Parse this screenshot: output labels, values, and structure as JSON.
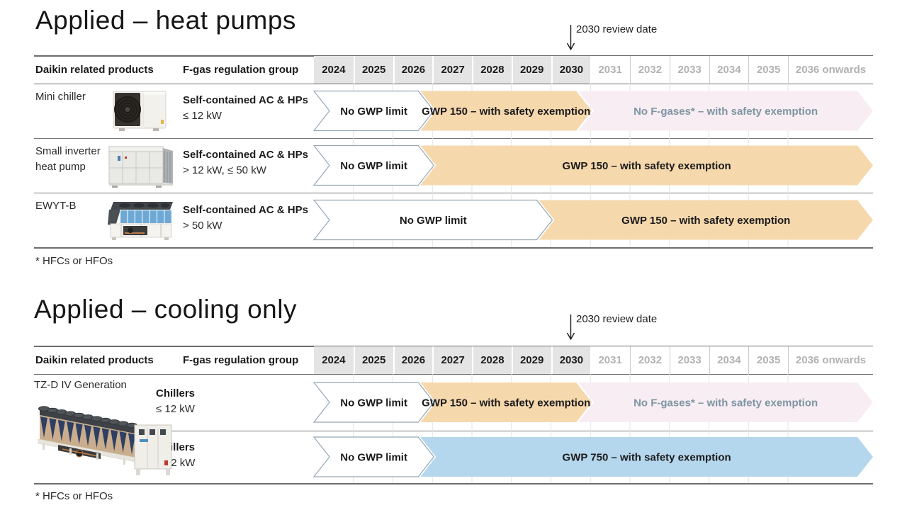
{
  "colors": {
    "orange": "#f6d8ad",
    "pink": "#f8edf3",
    "pink_text": "#7e95a3",
    "blue": "#b5d7ee",
    "outline_fill": "#ffffff",
    "outline_stroke": "#94a7b4",
    "arrow_text": "#1a1a1a",
    "header_gray_bg": "#e4e4e4",
    "future_year_text": "#b2b2b2",
    "gridline": "#e3e3e3",
    "future_separator": "#cccccc"
  },
  "timeline": {
    "years_active": [
      "2024",
      "2025",
      "2026",
      "2027",
      "2028",
      "2029",
      "2030"
    ],
    "years_future": [
      "2031",
      "2032",
      "2033",
      "2034",
      "2035",
      "2036 onwards"
    ]
  },
  "sections": [
    {
      "title": "Applied – heat pumps",
      "review_label": "2030 review date",
      "col_products": "Daikin related products",
      "col_group": "F-gas regulation group",
      "footnote": "* HFCs or HFOs",
      "rows": [
        {
          "product": "Mini chiller",
          "image": "mini-chiller",
          "group_title": "Self-contained AC & HPs",
          "group_capacity": "≤ 12 kW",
          "phases": [
            {
              "label": "No GWP limit",
              "style": "outline",
              "start_year": 2024,
              "end_year": 2026
            },
            {
              "label": "GWP 150 – with safety exemption",
              "style": "orange",
              "start_year": 2027,
              "end_year": 2030
            },
            {
              "label": "No F-gases* – with safety exemption",
              "style": "pink",
              "start_year": 2031,
              "end_year": "onwards"
            }
          ]
        },
        {
          "product": "Small inverter\nheat pump",
          "image": "small-inverter-heat-pump",
          "group_title": "Self-contained AC & HPs",
          "group_capacity": "> 12 kW, ≤ 50 kW",
          "phases": [
            {
              "label": "No GWP limit",
              "style": "outline",
              "start_year": 2024,
              "end_year": 2026
            },
            {
              "label": "GWP 150 – with safety exemption",
              "style": "orange",
              "start_year": 2027,
              "end_year": "onwards"
            }
          ]
        },
        {
          "product": "EWYT-B",
          "image": "ewyt-b-chiller",
          "group_title": "Self-contained AC & HPs",
          "group_capacity": "> 50 kW",
          "phases": [
            {
              "label": "No GWP limit",
              "style": "outline",
              "start_year": 2024,
              "end_year": 2029
            },
            {
              "label": "GWP 150 – with safety exemption",
              "style": "orange",
              "start_year": 2030,
              "end_year": "onwards"
            }
          ]
        }
      ]
    },
    {
      "title": "Applied – cooling only",
      "review_label": "2030 review date",
      "col_products": "Daikin related products",
      "col_group": "F-gas regulation group",
      "product_label": "TZ-D IV Generation",
      "footnote": "* HFCs or HFOs",
      "rows": [
        {
          "group_title": "Chillers",
          "group_capacity": "≤ 12 kW",
          "phases": [
            {
              "label": "No GWP limit",
              "style": "outline",
              "start_year": 2024,
              "end_year": 2026
            },
            {
              "label": "GWP 150 – with safety exemption",
              "style": "orange",
              "start_year": 2027,
              "end_year": 2030
            },
            {
              "label": "No F-gases* – with safety exemption",
              "style": "pink",
              "start_year": 2031,
              "end_year": "onwards"
            }
          ]
        },
        {
          "group_title": "Chillers",
          "group_capacity": "> 12 kW",
          "phases": [
            {
              "label": "No GWP limit",
              "style": "outline",
              "start_year": 2024,
              "end_year": 2026
            },
            {
              "label": "GWP 750 – with safety exemption",
              "style": "blue",
              "start_year": 2027,
              "end_year": "onwards"
            }
          ]
        }
      ]
    }
  ]
}
